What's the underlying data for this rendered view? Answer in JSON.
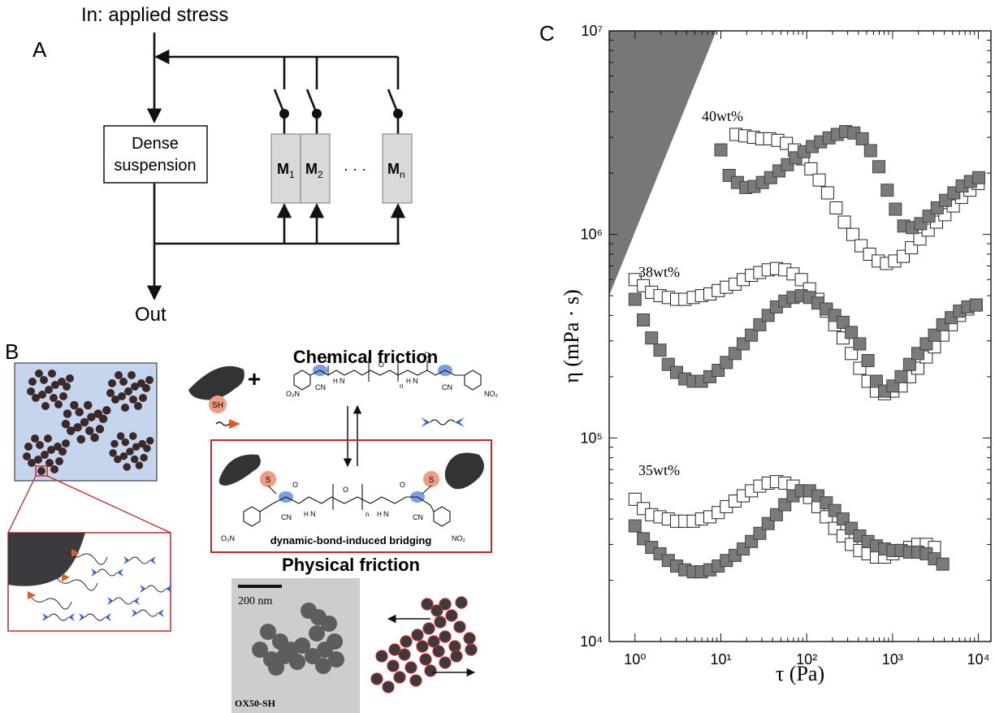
{
  "panel_a": {
    "letter": "A",
    "input_label": "In: applied stress",
    "output_label": "Out",
    "suspension_label_line1": "Dense",
    "suspension_label_line2": "suspension",
    "modules": [
      {
        "letter": "M",
        "sub": "1"
      },
      {
        "letter": "M",
        "sub": "2"
      },
      {
        "letter": "M",
        "sub": "n"
      }
    ],
    "ellipsis": "· · ·"
  },
  "panel_b": {
    "letter": "B",
    "chemical_title": "Chemical friction",
    "physical_title": "Physical friction",
    "bridging_caption": "dynamic-bond-induced bridging",
    "thiol_label": "SH",
    "sulfur_label": "S",
    "plus_sign": "+",
    "chem_labels": {
      "o": "O",
      "n": "n",
      "h": "H",
      "n_atom": "N",
      "cn": "CN",
      "no2_left": "O₂N",
      "no2_right": "NO₂"
    },
    "scale_bar": "200 nm",
    "tem_label": "OX50-SH"
  },
  "panel_c": {
    "letter": "C",
    "labels": {
      "s40": "40wt%",
      "s38": "38wt%",
      "s35": "35wt%"
    },
    "x_tick_labels": [
      "10⁰",
      "10¹",
      "10²",
      "10³",
      "10⁴"
    ],
    "y_tick_labels": [
      "10⁴",
      "10⁵",
      "10⁶",
      "10⁷"
    ]
  },
  "colors": {
    "filled_marker": "#7a7a7a",
    "open_marker": "#ffffff",
    "frame_red": "#c0282c",
    "module_fill": "#d9d9d9",
    "background_blue": "#c6d5ee",
    "blue_accent": "#3a63c6",
    "orange_accent": "#e2592a",
    "thiol_pink": "#ee9c82",
    "particle_dark": "#3b2828"
  },
  "chart_data": {
    "type": "scatter",
    "x_log_scale": true,
    "y_log_scale": true,
    "xlabel": "τ (Pa)",
    "ylabel": "η (mPa · s)",
    "xlim": [
      0.5,
      14000
    ],
    "ylim": [
      10000,
      10000000
    ],
    "shaded_region": "upper-left wedge",
    "series": [
      {
        "marker": "open",
        "points": [
          [
            15,
            3100000
          ],
          [
            19,
            3050000
          ],
          [
            24,
            3000000
          ],
          [
            30,
            2950000
          ],
          [
            37,
            2950000
          ],
          [
            46,
            2900000
          ],
          [
            58,
            2800000
          ],
          [
            72,
            2600000
          ],
          [
            90,
            2350000
          ],
          [
            112,
            2100000
          ],
          [
            140,
            1850000
          ],
          [
            175,
            1600000
          ],
          [
            220,
            1350000
          ],
          [
            275,
            1150000
          ],
          [
            345,
            1000000
          ],
          [
            430,
            880000
          ],
          [
            540,
            800000
          ],
          [
            680,
            740000
          ],
          [
            850,
            720000
          ],
          [
            1060,
            740000
          ],
          [
            1330,
            780000
          ],
          [
            1660,
            860000
          ],
          [
            2080,
            950000
          ],
          [
            2600,
            1050000
          ],
          [
            3250,
            1150000
          ],
          [
            4070,
            1250000
          ],
          [
            5090,
            1380000
          ],
          [
            6360,
            1520000
          ],
          [
            7960,
            1650000
          ],
          [
            9950,
            1780000
          ]
        ]
      },
      {
        "marker": "filled",
        "points": [
          [
            10,
            2600000
          ],
          [
            12.5,
            1950000
          ],
          [
            15.6,
            1800000
          ],
          [
            19.5,
            1700000
          ],
          [
            24.4,
            1720000
          ],
          [
            30.5,
            1800000
          ],
          [
            38,
            1900000
          ],
          [
            47.6,
            2050000
          ],
          [
            59.5,
            2200000
          ],
          [
            74.4,
            2380000
          ],
          [
            93,
            2550000
          ],
          [
            116,
            2700000
          ],
          [
            145,
            2850000
          ],
          [
            182,
            2980000
          ],
          [
            227,
            3100000
          ],
          [
            284,
            3200000
          ],
          [
            355,
            3150000
          ],
          [
            444,
            2950000
          ],
          [
            555,
            2580000
          ],
          [
            693,
            2150000
          ],
          [
            867,
            1650000
          ],
          [
            1080,
            1330000
          ],
          [
            1350,
            1100000
          ],
          [
            1690,
            1080000
          ],
          [
            2120,
            1130000
          ],
          [
            2650,
            1230000
          ],
          [
            3310,
            1350000
          ],
          [
            4140,
            1470000
          ],
          [
            5170,
            1600000
          ],
          [
            6460,
            1730000
          ],
          [
            8080,
            1820000
          ],
          [
            10100,
            1900000
          ]
        ]
      },
      {
        "marker": "open",
        "points": [
          [
            1,
            600000
          ],
          [
            1.25,
            560000
          ],
          [
            1.56,
            520000
          ],
          [
            1.95,
            500000
          ],
          [
            2.44,
            490000
          ],
          [
            3.05,
            480000
          ],
          [
            3.81,
            480000
          ],
          [
            4.77,
            490000
          ],
          [
            5.96,
            500000
          ],
          [
            7.45,
            510000
          ],
          [
            9.31,
            530000
          ],
          [
            11.6,
            550000
          ],
          [
            14.6,
            570000
          ],
          [
            18.2,
            600000
          ],
          [
            22.7,
            630000
          ],
          [
            28.4,
            650000
          ],
          [
            35.5,
            670000
          ],
          [
            44.4,
            680000
          ],
          [
            55.5,
            670000
          ],
          [
            69.4,
            640000
          ],
          [
            86.7,
            600000
          ],
          [
            108,
            540000
          ],
          [
            135,
            480000
          ],
          [
            169,
            420000
          ],
          [
            212,
            360000
          ],
          [
            265,
            310000
          ],
          [
            331,
            260000
          ],
          [
            414,
            220000
          ],
          [
            517,
            190000
          ],
          [
            647,
            170000
          ],
          [
            808,
            165000
          ],
          [
            1010,
            170000
          ],
          [
            1260,
            180000
          ],
          [
            1580,
            200000
          ],
          [
            1970,
            220000
          ],
          [
            2470,
            250000
          ],
          [
            3080,
            280000
          ],
          [
            3850,
            320000
          ],
          [
            4820,
            360000
          ],
          [
            6020,
            400000
          ],
          [
            7530,
            430000
          ],
          [
            9410,
            450000
          ]
        ]
      },
      {
        "marker": "filled",
        "points": [
          [
            1,
            480000
          ],
          [
            1.25,
            380000
          ],
          [
            1.56,
            310000
          ],
          [
            1.95,
            270000
          ],
          [
            2.44,
            230000
          ],
          [
            3.05,
            210000
          ],
          [
            3.81,
            195000
          ],
          [
            4.77,
            190000
          ],
          [
            5.96,
            190000
          ],
          [
            7.45,
            200000
          ],
          [
            9.31,
            215000
          ],
          [
            11.6,
            235000
          ],
          [
            14.6,
            260000
          ],
          [
            18.2,
            290000
          ],
          [
            22.7,
            320000
          ],
          [
            28.4,
            360000
          ],
          [
            35.5,
            400000
          ],
          [
            44.4,
            440000
          ],
          [
            55.5,
            470000
          ],
          [
            69.4,
            490000
          ],
          [
            86.7,
            500000
          ],
          [
            108,
            490000
          ],
          [
            135,
            460000
          ],
          [
            169,
            430000
          ],
          [
            212,
            400000
          ],
          [
            265,
            370000
          ],
          [
            331,
            330000
          ],
          [
            414,
            290000
          ],
          [
            517,
            240000
          ],
          [
            647,
            190000
          ],
          [
            808,
            170000
          ],
          [
            1010,
            180000
          ],
          [
            1260,
            200000
          ],
          [
            1580,
            230000
          ],
          [
            1970,
            260000
          ],
          [
            2470,
            290000
          ],
          [
            3080,
            320000
          ],
          [
            3850,
            360000
          ],
          [
            4820,
            390000
          ],
          [
            6020,
            420000
          ],
          [
            7530,
            440000
          ],
          [
            9410,
            450000
          ]
        ]
      },
      {
        "marker": "open",
        "points": [
          [
            1,
            50000
          ],
          [
            1.25,
            45000
          ],
          [
            1.56,
            42000
          ],
          [
            1.95,
            41000
          ],
          [
            2.44,
            40000
          ],
          [
            3.05,
            39000
          ],
          [
            3.81,
            39000
          ],
          [
            4.77,
            39000
          ],
          [
            5.96,
            40000
          ],
          [
            7.45,
            41000
          ],
          [
            9.31,
            43000
          ],
          [
            11.6,
            46000
          ],
          [
            14.6,
            49000
          ],
          [
            18.2,
            52000
          ],
          [
            22.7,
            55000
          ],
          [
            28.4,
            58000
          ],
          [
            35.5,
            60000
          ],
          [
            44.4,
            61000
          ],
          [
            55.5,
            60000
          ],
          [
            69.4,
            58000
          ],
          [
            86.7,
            55000
          ],
          [
            108,
            51000
          ],
          [
            135,
            46000
          ],
          [
            169,
            41000
          ],
          [
            212,
            36000
          ],
          [
            265,
            33000
          ],
          [
            331,
            30000
          ],
          [
            414,
            28000
          ],
          [
            517,
            27000
          ],
          [
            647,
            26000
          ],
          [
            808,
            26000
          ],
          [
            1010,
            27000
          ],
          [
            1260,
            28000
          ],
          [
            1580,
            29000
          ],
          [
            1970,
            30000
          ],
          [
            2470,
            30000
          ],
          [
            3080,
            29000
          ]
        ]
      },
      {
        "marker": "filled",
        "points": [
          [
            1,
            37000
          ],
          [
            1.25,
            32000
          ],
          [
            1.56,
            29000
          ],
          [
            1.95,
            27000
          ],
          [
            2.44,
            25000
          ],
          [
            3.05,
            23500
          ],
          [
            3.81,
            22500
          ],
          [
            4.77,
            22000
          ],
          [
            5.96,
            22000
          ],
          [
            7.45,
            22500
          ],
          [
            9.31,
            23500
          ],
          [
            11.6,
            25000
          ],
          [
            14.6,
            26500
          ],
          [
            18.2,
            28500
          ],
          [
            22.7,
            31000
          ],
          [
            28.4,
            34000
          ],
          [
            35.5,
            38000
          ],
          [
            44.4,
            42000
          ],
          [
            55.5,
            47000
          ],
          [
            69.4,
            52000
          ],
          [
            86.7,
            55000
          ],
          [
            108,
            55000
          ],
          [
            135,
            52000
          ],
          [
            169,
            48000
          ],
          [
            212,
            44000
          ],
          [
            265,
            40000
          ],
          [
            331,
            36000
          ],
          [
            414,
            33000
          ],
          [
            517,
            31000
          ],
          [
            647,
            29500
          ],
          [
            808,
            28500
          ],
          [
            1010,
            28000
          ],
          [
            1260,
            28000
          ],
          [
            1580,
            27500
          ],
          [
            1970,
            27500
          ],
          [
            2470,
            27000
          ],
          [
            3080,
            25500
          ],
          [
            3850,
            24000
          ]
        ]
      }
    ]
  }
}
